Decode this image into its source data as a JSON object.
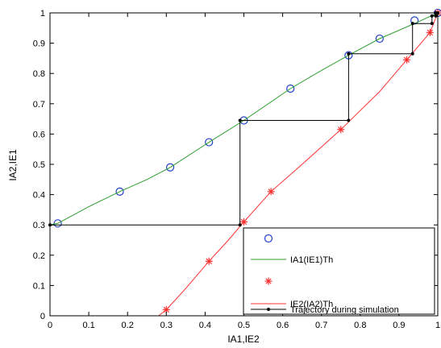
{
  "chart_data": {
    "type": "line",
    "xlabel": "IA1,IE2",
    "ylabel": "IA2,IE1",
    "xlim": [
      0,
      1
    ],
    "ylim": [
      0,
      1
    ],
    "x_ticks": [
      "0",
      "0.1",
      "0.2",
      "0.3",
      "0.4",
      "0.5",
      "0.6",
      "0.7",
      "0.8",
      "0.9",
      "1"
    ],
    "y_ticks": [
      "0",
      "0.1",
      "0.2",
      "0.3",
      "0.4",
      "0.5",
      "0.6",
      "0.7",
      "0.8",
      "0.9",
      "1"
    ],
    "grid": false,
    "legend_position": "bottom-right",
    "colors": {
      "green": "#2e9e2e",
      "red": "#ff3030",
      "blue": "#1f3fd0",
      "black": "#000000"
    },
    "series": [
      {
        "name": "",
        "type": "scatter",
        "marker": "circle",
        "color": "#1f3fd0",
        "x": [
          0.02,
          0.18,
          0.31,
          0.41,
          0.5,
          0.62,
          0.77,
          0.85,
          0.94,
          1.0
        ],
        "y": [
          0.305,
          0.41,
          0.49,
          0.573,
          0.645,
          0.75,
          0.86,
          0.915,
          0.975,
          1.0
        ]
      },
      {
        "name": "IA1(IE1)Th",
        "type": "line",
        "color": "#2e9e2e",
        "x": [
          0.0,
          0.02,
          0.1,
          0.18,
          0.25,
          0.31,
          0.41,
          0.5,
          0.62,
          0.7,
          0.77,
          0.85,
          0.94,
          1.0
        ],
        "y": [
          0.3,
          0.305,
          0.36,
          0.41,
          0.45,
          0.49,
          0.573,
          0.645,
          0.75,
          0.81,
          0.86,
          0.915,
          0.965,
          1.0
        ]
      },
      {
        "name": "",
        "type": "scatter",
        "marker": "asterisk",
        "color": "#ff3030",
        "x": [
          0.3,
          0.41,
          0.5,
          0.57,
          0.75,
          0.92,
          0.98,
          1.0
        ],
        "y": [
          0.02,
          0.18,
          0.31,
          0.41,
          0.615,
          0.845,
          0.935,
          1.0
        ]
      },
      {
        "name": "IE2(IA2)Th",
        "type": "line",
        "color": "#ff3030",
        "x": [
          0.28,
          0.3,
          0.35,
          0.41,
          0.46,
          0.5,
          0.57,
          0.65,
          0.75,
          0.85,
          0.92,
          0.98,
          1.0
        ],
        "y": [
          0.0,
          0.02,
          0.09,
          0.18,
          0.25,
          0.31,
          0.41,
          0.5,
          0.615,
          0.74,
          0.845,
          0.935,
          1.0
        ]
      },
      {
        "name": "Trajectory during simulation",
        "type": "line",
        "marker": "dot",
        "color": "#000000",
        "x": [
          0.0,
          0.49,
          0.49,
          0.77,
          0.77,
          0.935,
          0.935,
          0.985,
          0.985,
          0.995,
          0.995,
          1.0
        ],
        "y": [
          0.3,
          0.3,
          0.645,
          0.645,
          0.865,
          0.865,
          0.965,
          0.965,
          0.99,
          0.99,
          1.0,
          1.0
        ]
      }
    ]
  }
}
